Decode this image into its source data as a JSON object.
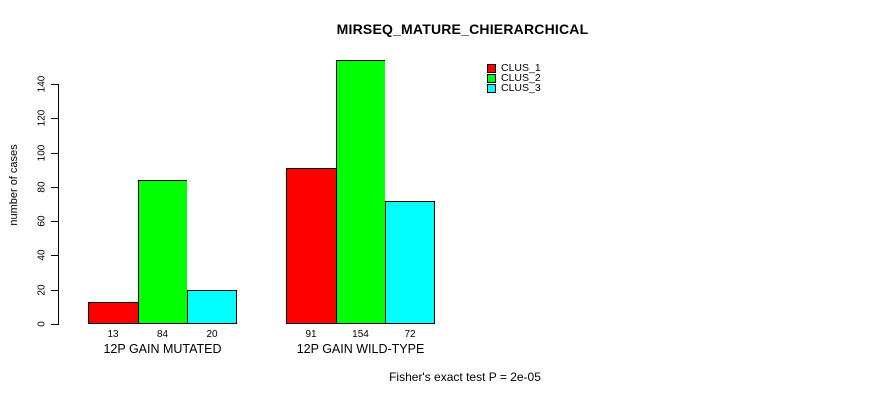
{
  "chart_data": {
    "type": "bar",
    "title": "MIRSEQ_MATURE_CHIERARCHICAL",
    "ylabel": "number of cases",
    "xlabel": "",
    "categories": [
      "12P GAIN MUTATED",
      "12P GAIN WILD-TYPE"
    ],
    "series": [
      {
        "name": "CLUS_1",
        "color": "#ff0000",
        "values": [
          13,
          91
        ]
      },
      {
        "name": "CLUS_2",
        "color": "#00ff00",
        "values": [
          84,
          154
        ]
      },
      {
        "name": "CLUS_3",
        "color": "#00ffff",
        "values": [
          20,
          72
        ]
      }
    ],
    "ylim": [
      0,
      140
    ],
    "yticks": [
      0,
      20,
      40,
      60,
      80,
      100,
      120,
      140
    ],
    "bar_value_labels_shown": true,
    "grid": false,
    "legend_position": "top-right",
    "legend_entries": [
      "CLUS_1",
      "CLUS_2",
      "CLUS_3"
    ],
    "annotation": "Fisher's exact test P = 2e-05",
    "background_color": "#ffffff",
    "text_color": "#000000"
  }
}
